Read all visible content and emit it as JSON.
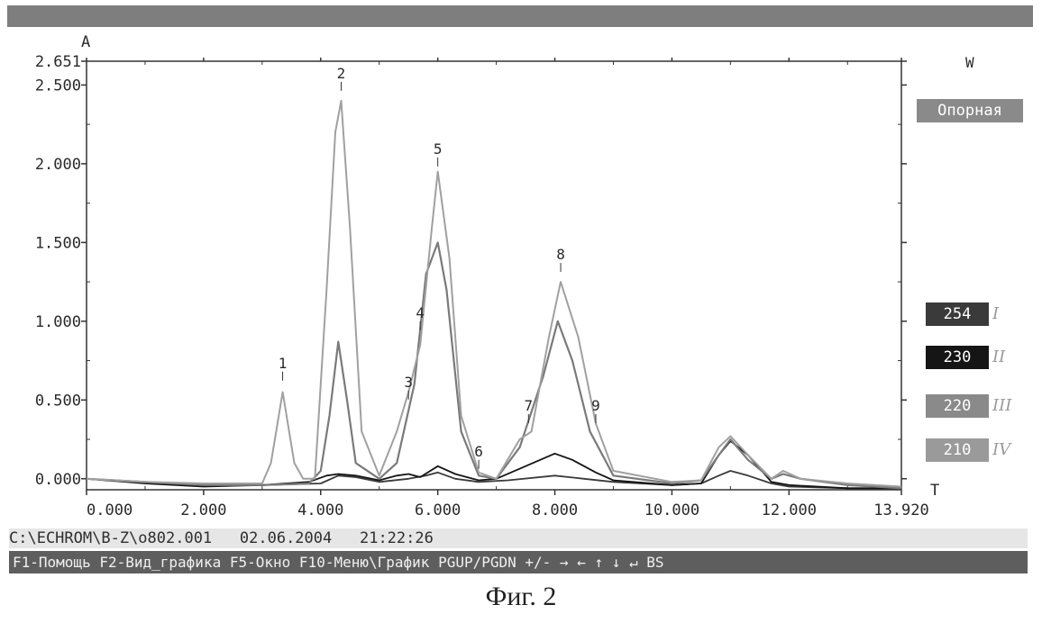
{
  "chart_data": {
    "type": "line",
    "y_axis_label": "A",
    "x_axis_label": "T",
    "right_axis_label": "W",
    "xlim": [
      0,
      13.92
    ],
    "ylim": [
      -0.07,
      2.651
    ],
    "y_ticks": [
      "2.651",
      "2.500",
      "2.000",
      "1.500",
      "1.000",
      "0.500",
      "0.000"
    ],
    "y_tick_values": [
      2.651,
      2.5,
      2.0,
      1.5,
      1.0,
      0.5,
      0.0
    ],
    "x_ticks": [
      "0.000",
      "2.000",
      "4.000",
      "6.000",
      "8.000",
      "10.000",
      "12.000",
      "13.920"
    ],
    "x_tick_values": [
      0,
      2,
      4,
      6,
      8,
      10,
      12,
      13.92
    ],
    "reference_label": "Опорная",
    "peaks": [
      {
        "label": "1",
        "x": 3.35,
        "y": 0.6
      },
      {
        "label": "2",
        "x": 4.35,
        "y": 2.44
      },
      {
        "label": "3",
        "x": 5.5,
        "y": 0.48
      },
      {
        "label": "4",
        "x": 5.7,
        "y": 0.92
      },
      {
        "label": "5",
        "x": 6.0,
        "y": 1.96
      },
      {
        "label": "6",
        "x": 6.7,
        "y": 0.04
      },
      {
        "label": "7",
        "x": 7.55,
        "y": 0.33
      },
      {
        "label": "8",
        "x": 8.1,
        "y": 1.29
      },
      {
        "label": "9",
        "x": 8.7,
        "y": 0.33
      }
    ],
    "series": [
      {
        "name": "254",
        "roman": "I",
        "color": "#3a3a3a",
        "fill": "#3a3a3a",
        "x": [
          0,
          1,
          2,
          3,
          4,
          4.3,
          4.6,
          5,
          5.5,
          5.8,
          6.0,
          6.3,
          6.7,
          7.2,
          8.0,
          8.5,
          9.0,
          10.0,
          10.5,
          10.8,
          11.0,
          11.3,
          11.7,
          12.0,
          13.0,
          13.92
        ],
        "y": [
          0.0,
          -0.02,
          -0.04,
          -0.04,
          -0.03,
          0.02,
          0.01,
          -0.02,
          0.0,
          0.02,
          0.04,
          0.0,
          -0.02,
          -0.01,
          0.02,
          0.0,
          -0.02,
          -0.04,
          -0.03,
          0.02,
          0.05,
          0.02,
          -0.03,
          -0.05,
          -0.06,
          -0.06
        ]
      },
      {
        "name": "230",
        "roman": "II",
        "color": "#151515",
        "fill": "#151515",
        "x": [
          0,
          1,
          2,
          3,
          3.8,
          4.1,
          4.3,
          4.6,
          5.0,
          5.3,
          5.5,
          5.7,
          6.0,
          6.3,
          6.7,
          7.0,
          7.5,
          8.0,
          8.3,
          8.7,
          9.0,
          10.0,
          10.5,
          10.8,
          11.0,
          11.3,
          11.7,
          12.0,
          13.0,
          13.92
        ],
        "y": [
          0.0,
          -0.03,
          -0.05,
          -0.04,
          -0.02,
          0.02,
          0.03,
          0.02,
          -0.01,
          0.02,
          0.03,
          0.01,
          0.08,
          0.03,
          -0.01,
          0.0,
          0.08,
          0.16,
          0.12,
          0.04,
          -0.01,
          -0.04,
          -0.03,
          0.15,
          0.24,
          0.15,
          -0.02,
          -0.04,
          -0.06,
          -0.06
        ]
      },
      {
        "name": "220",
        "roman": "III",
        "color": "#7a7a7a",
        "fill": "#8a8a8a",
        "x": [
          0,
          1,
          2,
          3,
          3.8,
          4.0,
          4.15,
          4.3,
          4.45,
          4.6,
          5.0,
          5.3,
          5.6,
          5.8,
          6.0,
          6.15,
          6.4,
          6.7,
          7.0,
          7.4,
          7.8,
          8.05,
          8.3,
          8.6,
          9.0,
          10.0,
          10.5,
          10.8,
          11.0,
          11.3,
          11.7,
          11.9,
          12.2,
          13.0,
          13.92
        ],
        "y": [
          0.0,
          -0.02,
          -0.04,
          -0.04,
          -0.03,
          0.05,
          0.4,
          0.87,
          0.5,
          0.1,
          0.0,
          0.1,
          0.6,
          1.3,
          1.5,
          1.2,
          0.3,
          0.02,
          0.0,
          0.2,
          0.65,
          1.0,
          0.75,
          0.3,
          0.02,
          -0.03,
          -0.01,
          0.15,
          0.25,
          0.12,
          0.0,
          0.03,
          0.0,
          -0.04,
          -0.06
        ]
      },
      {
        "name": "210",
        "roman": "IV",
        "color": "#a0a0a0",
        "fill": "#9a9a9a",
        "x": [
          0,
          1,
          2,
          3.0,
          3.15,
          3.35,
          3.55,
          3.7,
          3.9,
          4.1,
          4.25,
          4.35,
          4.5,
          4.7,
          5.0,
          5.3,
          5.5,
          5.7,
          5.9,
          6.0,
          6.2,
          6.4,
          6.7,
          7.0,
          7.4,
          7.6,
          7.9,
          8.1,
          8.4,
          8.7,
          9.0,
          10.0,
          10.5,
          10.8,
          11.0,
          11.3,
          11.7,
          11.9,
          12.2,
          13.0,
          13.92
        ],
        "y": [
          0.0,
          -0.02,
          -0.03,
          -0.03,
          0.1,
          0.55,
          0.1,
          0.0,
          0.0,
          1.2,
          2.2,
          2.4,
          1.6,
          0.3,
          0.02,
          0.3,
          0.55,
          0.85,
          1.6,
          1.95,
          1.4,
          0.4,
          0.04,
          0.0,
          0.25,
          0.3,
          0.9,
          1.25,
          0.9,
          0.35,
          0.05,
          -0.02,
          -0.01,
          0.2,
          0.27,
          0.15,
          0.0,
          0.05,
          0.0,
          -0.03,
          -0.05
        ]
      }
    ]
  },
  "status": {
    "path": "C:\\ECHROM\\B-Z\\o802.001",
    "date": "02.06.2004",
    "time": "21:22:26"
  },
  "keys": {
    "f1": "F1-Помощь",
    "f2": "F2-Вид_графика",
    "f5": "F5-Окно",
    "f10": "F10-Меню\\График",
    "nav": "PGUP/PGDN +/- → ← ↑ ↓ ↵ BS"
  },
  "caption": "Фиг. 2"
}
